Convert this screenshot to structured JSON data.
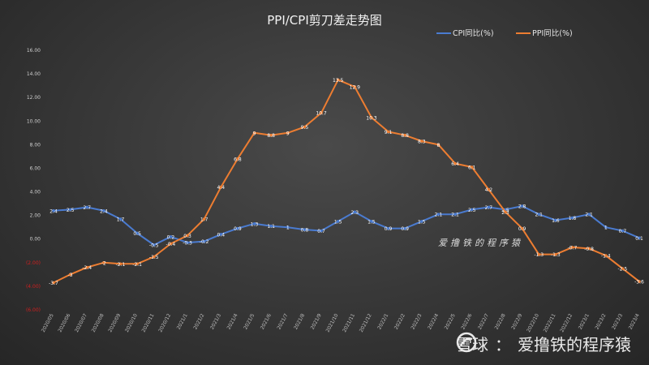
{
  "chart_data": {
    "type": "line",
    "title": "PPI/CPI剪刀差走势图",
    "categories": [
      "2020/05",
      "2020/06",
      "2020/07",
      "2020/08",
      "2020/09",
      "2020/10",
      "2020/11",
      "2020/12",
      "2021/1",
      "2021/2",
      "2021/3",
      "2021/4",
      "2021/5",
      "2021/6",
      "2021/7",
      "2021/8",
      "2021/9",
      "2021/10",
      "2021/11",
      "2021/12",
      "2022/1",
      "2022/2",
      "2022/3",
      "2022/4",
      "2022/5",
      "2022/6",
      "2022/7",
      "2022/8",
      "2022/9",
      "2022/10",
      "2022/11",
      "2022/12",
      "2023/1",
      "2023/2",
      "2023/3",
      "2023/4"
    ],
    "series": [
      {
        "name": "CPI同比(%)",
        "color": "#4a7bd0",
        "values": [
          2.4,
          2.5,
          2.7,
          2.4,
          1.7,
          0.5,
          -0.5,
          0.2,
          -0.3,
          -0.2,
          0.4,
          0.9,
          1.3,
          1.1,
          1.0,
          0.8,
          0.7,
          1.5,
          2.3,
          1.5,
          0.9,
          0.9,
          1.5,
          2.1,
          2.1,
          2.5,
          2.7,
          2.5,
          2.8,
          2.1,
          1.6,
          1.8,
          2.1,
          1.0,
          0.7,
          0.1
        ]
      },
      {
        "name": "PPI同比(%)",
        "color": "#ed7d31",
        "values": [
          -3.7,
          -3,
          -2.4,
          -2,
          -2.1,
          -2.1,
          -1.5,
          -0.4,
          0.3,
          1.7,
          4.4,
          6.8,
          9,
          8.8,
          9,
          9.5,
          10.7,
          13.5,
          12.9,
          10.3,
          9.1,
          8.8,
          8.3,
          8,
          6.4,
          6.1,
          4.2,
          2.3,
          0.9,
          -1.3,
          -1.3,
          -0.7,
          -0.8,
          -1.4,
          -2.5,
          -3.6
        ]
      }
    ],
    "ytick_labels": [
      "16.00",
      "14.00",
      "12.00",
      "10.00",
      "8.00",
      "6.00",
      "4.00",
      "2.00",
      "0.00",
      "(2.00)",
      "(4.00)",
      "(6.00)"
    ],
    "ylim": [
      -6,
      16
    ],
    "negative_tick_color": "#d21e1e",
    "legend_position": "top-right",
    "grid": false
  },
  "watermark": {
    "brand": "雪球",
    "separator": "：",
    "author": "爱撸铁的程序猿"
  },
  "plot_mark": "爱撸铁的程序猿"
}
